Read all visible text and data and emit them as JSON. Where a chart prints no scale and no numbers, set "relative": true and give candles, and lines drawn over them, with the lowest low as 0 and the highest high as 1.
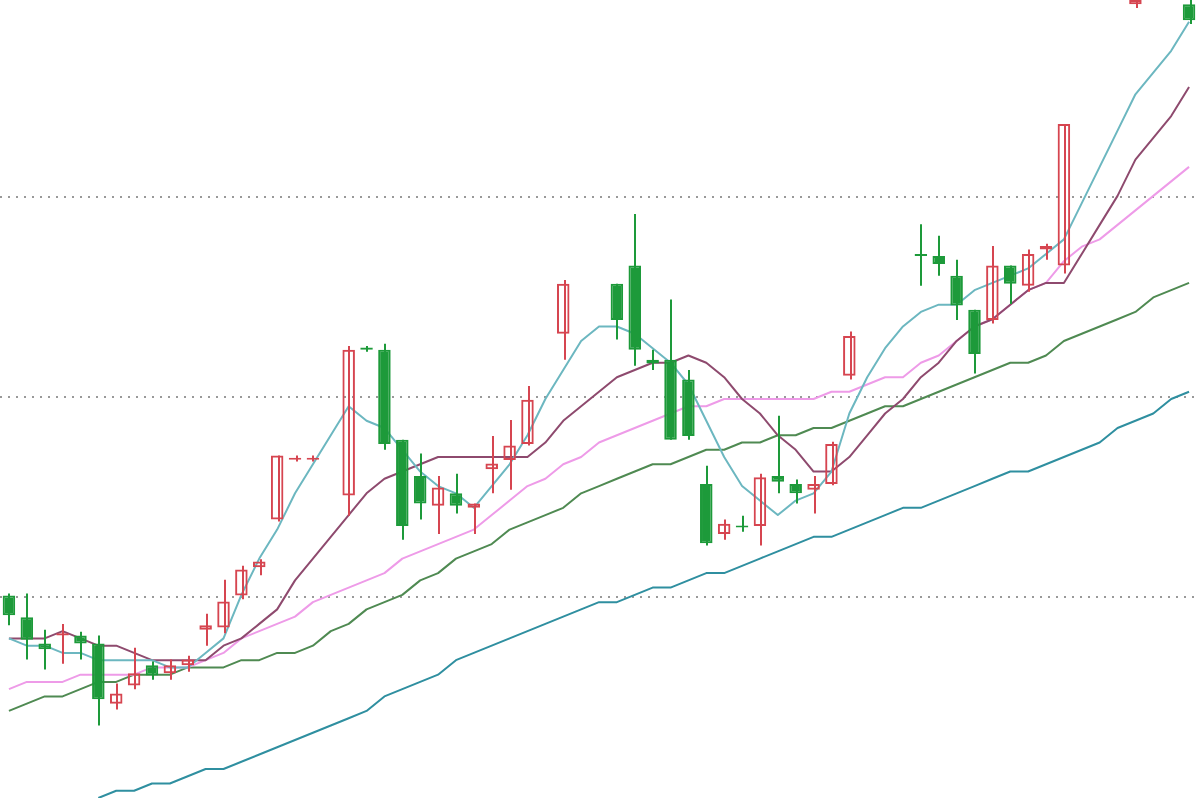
{
  "chart_data": {
    "type": "candlestick",
    "relative": true,
    "categories": [
      null,
      null,
      null,
      null,
      null,
      null,
      null,
      null,
      null,
      null,
      null,
      null,
      null,
      null,
      null,
      null,
      null,
      null,
      null,
      null,
      null,
      null,
      null,
      null,
      null,
      null,
      null,
      null,
      null,
      null,
      null,
      null,
      null,
      null,
      null,
      null,
      null,
      null,
      null,
      null,
      null,
      null,
      null,
      null,
      null,
      null,
      null,
      null,
      null,
      null,
      null,
      null,
      null,
      null,
      null,
      null,
      null,
      null,
      null,
      null,
      null,
      null,
      null,
      null,
      null,
      null,
      null
    ],
    "ohlc": [
      [
        0.179,
        0.182,
        0.138,
        0.152
      ],
      [
        0.149,
        0.182,
        0.091,
        0.118
      ],
      [
        0.113,
        0.132,
        0.077,
        0.105
      ],
      [
        0.124,
        0.14,
        0.085,
        0.127
      ],
      [
        0.124,
        0.129,
        0.091,
        0.113
      ],
      [
        0.113,
        0.124,
        0,
        0.036
      ],
      [
        0.03,
        0.058,
        0.022,
        0.044
      ],
      [
        0.055,
        0.107,
        0.05,
        0.072
      ],
      [
        0.083,
        0.088,
        0.063,
        0.069
      ],
      [
        0.072,
        0.091,
        0.063,
        0.083
      ],
      [
        0.083,
        0.096,
        0.074,
        0.091
      ],
      [
        0.132,
        0.154,
        0.11,
        0.138
      ],
      [
        0.135,
        0.201,
        0.127,
        0.171
      ],
      [
        0.179,
        0.22,
        0.174,
        0.215
      ],
      [
        0.218,
        0.229,
        0.207,
        0.226
      ],
      [
        0.284,
        0.372,
        0.281,
        0.372
      ],
      [
        0.369,
        0.372,
        0.364,
        0.369
      ],
      [
        0.369,
        0.372,
        0.364,
        0.369
      ],
      null,
      [
        0.317,
        0.523,
        0.289,
        0.518
      ],
      [
        0.521,
        0.523,
        0.515,
        0.518
      ],
      [
        0.518,
        0.526,
        0.38,
        0.388
      ],
      [
        0.394,
        0.394,
        0.256,
        0.275
      ],
      [
        0.344,
        0.375,
        0.284,
        0.306
      ],
      [
        0.303,
        0.344,
        0.264,
        0.328
      ],
      [
        0.32,
        0.347,
        0.292,
        0.303
      ],
      [
        0.3,
        0.306,
        0.264,
        0.306
      ],
      [
        0.353,
        0.399,
        0.32,
        0.361
      ],
      [
        0.366,
        0.421,
        0.325,
        0.386
      ],
      [
        0.388,
        0.468,
        0.386,
        0.449
      ],
      null,
      [
        0.54,
        0.614,
        0.504,
        0.609
      ],
      null,
      null,
      [
        0.609,
        0.609,
        0.532,
        0.559
      ],
      [
        0.634,
        0.705,
        0.496,
        0.518
      ],
      [
        0.504,
        0.518,
        0.49,
        0.499
      ],
      [
        0.504,
        0.587,
        0.394,
        0.394
      ],
      [
        0.477,
        0.49,
        0.394,
        0.399
      ],
      [
        0.333,
        0.358,
        0.248,
        0.251
      ],
      [
        0.264,
        0.284,
        0.256,
        0.278
      ],
      [
        0.275,
        0.289,
        0.267,
        0.273
      ],
      [
        0.275,
        0.347,
        0.248,
        0.342
      ],
      [
        0.344,
        0.427,
        0.32,
        0.336
      ],
      [
        0.333,
        0.339,
        0.306,
        0.32
      ],
      [
        0.325,
        0.344,
        0.292,
        0.333
      ],
      [
        0.333,
        0.391,
        0.331,
        0.388
      ],
      [
        0.482,
        0.543,
        0.477,
        0.537
      ],
      null,
      null,
      null,
      [
        0.65,
        0.691,
        0.606,
        0.647
      ],
      [
        0.647,
        0.675,
        0.62,
        0.636
      ],
      [
        0.62,
        0.642,
        0.559,
        0.579
      ],
      [
        0.573,
        0.573,
        0.485,
        0.512
      ],
      [
        0.559,
        0.661,
        0.554,
        0.634
      ],
      [
        0.634,
        0.634,
        0.581,
        0.609
      ],
      [
        0.606,
        0.656,
        0.598,
        0.65
      ],
      [
        0.656,
        0.664,
        0.642,
        0.661
      ],
      [
        0.634,
        0.829,
        0.623,
        0.829
      ],
      null,
      null,
      null,
      [
        0.994,
        1,
        0.989,
        1
      ],
      null,
      null,
      [
        0.994,
        1,
        0.967,
        0.972
      ]
    ],
    "colors": [
      "#1d9a3a",
      "#1d9a3a",
      "#1d9a3a",
      "#d64550",
      "#1d9a3a",
      "#1d9a3a",
      "#d64550",
      "#d64550",
      "#1d9a3a",
      "#d64550",
      "#d64550",
      "#d64550",
      "#d64550",
      "#d64550",
      "#d64550",
      "#d64550",
      "#d64550",
      "#d64550",
      null,
      "#d64550",
      "#1d9a3a",
      "#1d9a3a",
      "#1d9a3a",
      "#1d9a3a",
      "#d64550",
      "#1d9a3a",
      "#d64550",
      "#d64550",
      "#d64550",
      "#d64550",
      null,
      "#d64550",
      null,
      null,
      "#1d9a3a",
      "#1d9a3a",
      "#1d9a3a",
      "#1d9a3a",
      "#1d9a3a",
      "#1d9a3a",
      "#d64550",
      "#1d9a3a",
      "#d64550",
      "#1d9a3a",
      "#1d9a3a",
      "#d64550",
      "#d64550",
      "#d64550",
      null,
      null,
      null,
      "#1d9a3a",
      "#1d9a3a",
      "#1d9a3a",
      "#1d9a3a",
      "#d64550",
      "#1d9a3a",
      "#d64550",
      "#d64550",
      "#d64550",
      null,
      null,
      null,
      "#d64550",
      null,
      null,
      "#1d9a3a"
    ],
    "series": [
      {
        "type": "line",
        "color": "#6cb7c0",
        "values": [
          0.12,
          0.11,
          0.11,
          0.1,
          0.1,
          0.09,
          0.09,
          0.09,
          0.09,
          0.08,
          0.08,
          0.1,
          0.12,
          0.18,
          0.23,
          0.27,
          0.32,
          0.36,
          0.4,
          0.44,
          0.42,
          0.41,
          0.38,
          0.35,
          0.33,
          0.32,
          0.3,
          0.33,
          0.36,
          0.4,
          0.45,
          0.49,
          0.53,
          0.55,
          0.55,
          0.54,
          0.52,
          0.5,
          0.47,
          0.42,
          0.37,
          0.33,
          0.31,
          0.29,
          0.31,
          0.32,
          0.35,
          0.43,
          0.48,
          0.52,
          0.55,
          0.57,
          0.58,
          0.58,
          0.6,
          0.61,
          0.62,
          0.63,
          0.65,
          0.67,
          0.72,
          0.77,
          0.82,
          0.87,
          0.9,
          0.93,
          0.97
        ]
      },
      {
        "type": "line",
        "color": "#8e4a6e",
        "values": [
          0.12,
          0.12,
          0.12,
          0.13,
          0.12,
          0.11,
          0.11,
          0.1,
          0.09,
          0.09,
          0.09,
          0.09,
          0.11,
          0.12,
          0.14,
          0.16,
          0.2,
          0.23,
          0.26,
          0.29,
          0.32,
          0.34,
          0.35,
          0.36,
          0.37,
          0.37,
          0.37,
          0.37,
          0.37,
          0.37,
          0.39,
          0.42,
          0.44,
          0.46,
          0.48,
          0.49,
          0.5,
          0.5,
          0.51,
          0.5,
          0.48,
          0.45,
          0.43,
          0.4,
          0.38,
          0.35,
          0.35,
          0.37,
          0.4,
          0.43,
          0.45,
          0.48,
          0.5,
          0.53,
          0.55,
          0.56,
          0.58,
          0.6,
          0.61,
          0.61,
          0.65,
          0.69,
          0.73,
          0.78,
          0.81,
          0.84,
          0.88
        ]
      },
      {
        "type": "line",
        "color": "#ee9be8",
        "values": [
          0.05,
          0.06,
          0.06,
          0.06,
          0.07,
          0.07,
          0.07,
          0.07,
          0.08,
          0.08,
          0.08,
          0.09,
          0.1,
          0.12,
          0.13,
          0.14,
          0.15,
          0.17,
          0.18,
          0.19,
          0.2,
          0.21,
          0.23,
          0.24,
          0.25,
          0.26,
          0.27,
          0.29,
          0.31,
          0.33,
          0.34,
          0.36,
          0.37,
          0.39,
          0.4,
          0.41,
          0.42,
          0.43,
          0.44,
          0.44,
          0.45,
          0.45,
          0.45,
          0.45,
          0.45,
          0.45,
          0.46,
          0.46,
          0.47,
          0.48,
          0.48,
          0.5,
          0.51,
          0.53,
          0.55,
          0.56,
          0.58,
          0.6,
          0.61,
          0.64,
          0.66,
          0.67,
          0.69,
          0.71,
          0.73,
          0.75,
          0.77
        ]
      },
      {
        "type": "line",
        "color": "#4f8a52",
        "values": [
          0.02,
          0.03,
          0.04,
          0.04,
          0.05,
          0.06,
          0.06,
          0.07,
          0.07,
          0.07,
          0.08,
          0.08,
          0.08,
          0.09,
          0.09,
          0.1,
          0.1,
          0.11,
          0.13,
          0.14,
          0.16,
          0.17,
          0.18,
          0.2,
          0.21,
          0.23,
          0.24,
          0.25,
          0.27,
          0.28,
          0.29,
          0.3,
          0.32,
          0.33,
          0.34,
          0.35,
          0.36,
          0.36,
          0.37,
          0.38,
          0.38,
          0.39,
          0.39,
          0.4,
          0.4,
          0.41,
          0.41,
          0.42,
          0.43,
          0.44,
          0.44,
          0.45,
          0.46,
          0.47,
          0.48,
          0.49,
          0.5,
          0.5,
          0.51,
          0.53,
          0.54,
          0.55,
          0.56,
          0.57,
          0.59,
          0.6,
          0.61
        ]
      },
      {
        "type": "line",
        "color": "#2f8fa0",
        "values": [
          null,
          null,
          null,
          null,
          null,
          -0.1,
          -0.09,
          -0.09,
          -0.08,
          -0.08,
          -0.07,
          -0.06,
          -0.06,
          -0.05,
          -0.04,
          -0.03,
          -0.02,
          -0.01,
          0.0,
          0.01,
          0.02,
          0.04,
          0.05,
          0.06,
          0.07,
          0.09,
          0.1,
          0.11,
          0.12,
          0.13,
          0.14,
          0.15,
          0.16,
          0.17,
          0.17,
          0.18,
          0.19,
          0.19,
          0.2,
          0.21,
          0.21,
          0.22,
          0.23,
          0.24,
          0.25,
          0.26,
          0.26,
          0.27,
          0.28,
          0.29,
          0.3,
          0.3,
          0.31,
          0.32,
          0.33,
          0.34,
          0.35,
          0.35,
          0.36,
          0.37,
          0.38,
          0.39,
          0.41,
          0.42,
          0.43,
          0.45,
          0.46
        ]
      }
    ],
    "ref_lines": [
      {
        "axis": "y",
        "value": 0.73,
        "color": "#999999",
        "line_style": "dotted"
      },
      {
        "axis": "y",
        "value": 0.455,
        "color": "#999999",
        "line_style": "dotted"
      },
      {
        "axis": "y",
        "value": 0.179,
        "color": "#999999",
        "line_style": "dotted"
      }
    ]
  }
}
